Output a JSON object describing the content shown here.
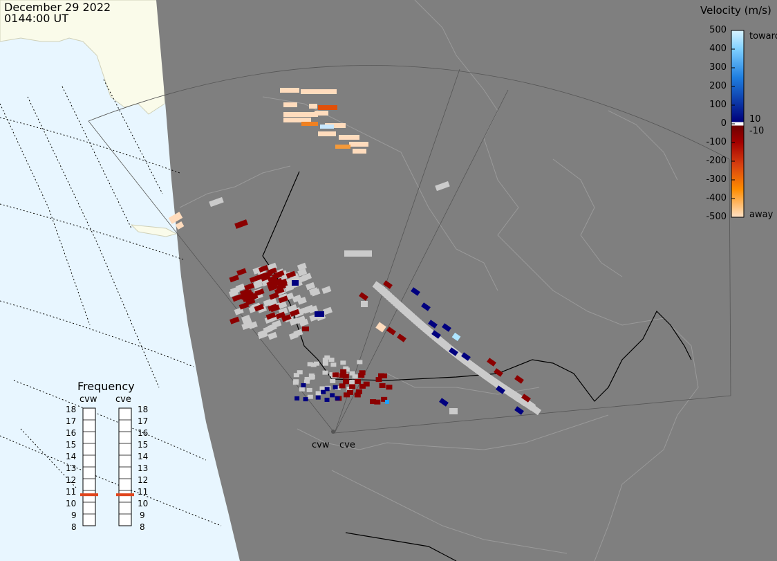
{
  "header": {
    "date": "December 29 2022",
    "time": "0144:00 UT"
  },
  "colorbar": {
    "title": "Velocity (m/s)",
    "ticks": [
      "500",
      "400",
      "300",
      "200",
      "100",
      "0",
      "-100",
      "-200",
      "-300",
      "-400",
      "-500"
    ],
    "label_toward": "toward",
    "label_away": "away",
    "label_pos_threshold": "10",
    "label_neg_threshold": "-10"
  },
  "frequency": {
    "title": "Frequency",
    "radars": [
      {
        "name": "cvw",
        "value_mhz": 10.4
      },
      {
        "name": "cve",
        "value_mhz": 10.4
      }
    ],
    "levels": [
      "18",
      "17",
      "16",
      "15",
      "14",
      "13",
      "12",
      "11",
      "10",
      "9",
      "8"
    ]
  },
  "map_labels": {
    "radar_west": "cvw",
    "radar_east": "cve"
  },
  "colors": {
    "ocean": "#e8f6ff",
    "land_ice": "#fafbea",
    "night_shade": "#7f7f7f",
    "ground_scatter": "#cbcbcb",
    "velocity_toward_low": "#00007f",
    "velocity_toward_high": "#aee6ff",
    "velocity_away_low": "#8b0000",
    "velocity_away_high": "#ffdcbd",
    "frequency_marker": "#e0461e"
  }
}
